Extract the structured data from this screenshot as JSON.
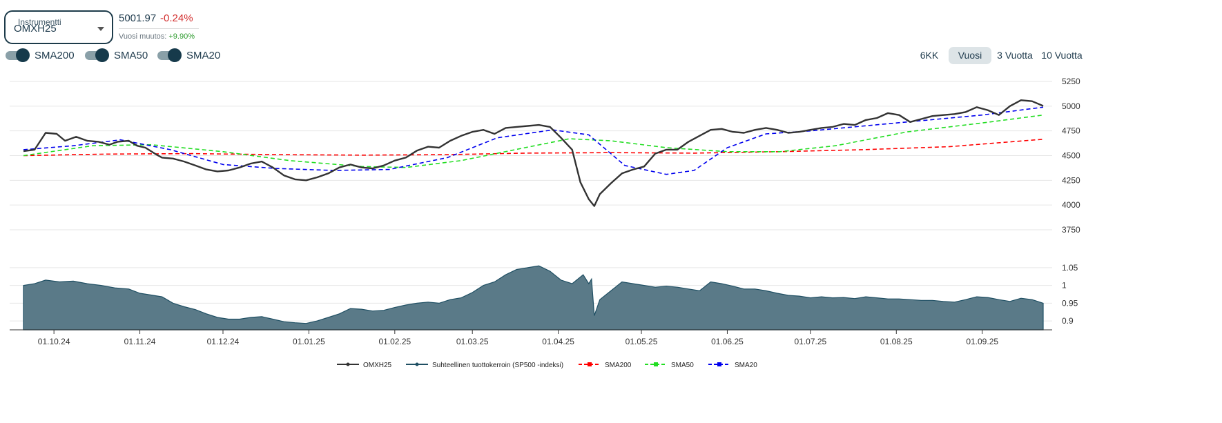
{
  "instrument": {
    "label": "Instrumentti",
    "value": "OMXH25"
  },
  "quote": {
    "price": "5001.97",
    "change": "-0.24%",
    "ytd_label": "Vuosi muutos:",
    "ytd_value": "+9.90%"
  },
  "toggles": [
    {
      "label": "SMA200",
      "on": true
    },
    {
      "label": "SMA50",
      "on": true
    },
    {
      "label": "SMA20",
      "on": true
    }
  ],
  "ranges": [
    {
      "label": "6KK",
      "active": false
    },
    {
      "label": "Vuosi",
      "active": true
    },
    {
      "label": "3 Vuotta",
      "active": false
    },
    {
      "label": "10 Vuotta",
      "active": false
    }
  ],
  "colors": {
    "price": "#333333",
    "relative": "#1f4f63",
    "relative_fill": "#5a7a88",
    "sma200": "#ff0000",
    "sma50": "#22dd22",
    "sma20": "#0000ee"
  },
  "chart_data": {
    "type": "line",
    "x_ticks": [
      "01.10.24",
      "01.11.24",
      "01.12.24",
      "01.01.25",
      "01.02.25",
      "01.03.25",
      "01.04.25",
      "01.05.25",
      "01.06.25",
      "01.07.25",
      "01.08.25",
      "01.09.25"
    ],
    "y_ticks_price": [
      "5250",
      "5000",
      "4750",
      "4500",
      "4250",
      "4000",
      "3750"
    ],
    "y_ticks_relative": [
      "1.05",
      "1",
      "0.95",
      "0.9"
    ],
    "ylim_price": [
      3750,
      5250
    ],
    "ylim_relative": [
      0.875,
      1.075
    ],
    "xlim": [
      "2024-09-20",
      "2025-09-23"
    ],
    "series": [
      {
        "name": "OMXH25",
        "points": [
          [
            "2024-09-20",
            4545
          ],
          [
            "2024-09-24",
            4560
          ],
          [
            "2024-09-28",
            4730
          ],
          [
            "2024-10-02",
            4720
          ],
          [
            "2024-10-05",
            4650
          ],
          [
            "2024-10-09",
            4690
          ],
          [
            "2024-10-13",
            4650
          ],
          [
            "2024-10-17",
            4640
          ],
          [
            "2024-10-21",
            4610
          ],
          [
            "2024-10-24",
            4640
          ],
          [
            "2024-10-28",
            4650
          ],
          [
            "2024-10-31",
            4600
          ],
          [
            "2024-11-03",
            4580
          ],
          [
            "2024-11-07",
            4510
          ],
          [
            "2024-11-09",
            4480
          ],
          [
            "2024-11-13",
            4470
          ],
          [
            "2024-11-17",
            4440
          ],
          [
            "2024-11-21",
            4400
          ],
          [
            "2024-11-25",
            4360
          ],
          [
            "2024-11-29",
            4340
          ],
          [
            "2024-12-03",
            4350
          ],
          [
            "2024-12-07",
            4380
          ],
          [
            "2024-12-11",
            4420
          ],
          [
            "2024-12-15",
            4440
          ],
          [
            "2024-12-19",
            4380
          ],
          [
            "2024-12-23",
            4300
          ],
          [
            "2024-12-27",
            4260
          ],
          [
            "2024-12-31",
            4250
          ],
          [
            "2025-01-04",
            4280
          ],
          [
            "2025-01-08",
            4320
          ],
          [
            "2025-01-12",
            4380
          ],
          [
            "2025-01-16",
            4410
          ],
          [
            "2025-01-20",
            4380
          ],
          [
            "2025-01-24",
            4370
          ],
          [
            "2025-01-28",
            4400
          ],
          [
            "2025-02-01",
            4450
          ],
          [
            "2025-02-05",
            4480
          ],
          [
            "2025-02-09",
            4550
          ],
          [
            "2025-02-13",
            4590
          ],
          [
            "2025-02-17",
            4580
          ],
          [
            "2025-02-21",
            4650
          ],
          [
            "2025-02-25",
            4700
          ],
          [
            "2025-03-01",
            4740
          ],
          [
            "2025-03-05",
            4760
          ],
          [
            "2025-03-09",
            4720
          ],
          [
            "2025-03-13",
            4780
          ],
          [
            "2025-03-17",
            4790
          ],
          [
            "2025-03-21",
            4800
          ],
          [
            "2025-03-25",
            4810
          ],
          [
            "2025-03-29",
            4790
          ],
          [
            "2025-04-02",
            4680
          ],
          [
            "2025-04-06",
            4560
          ],
          [
            "2025-04-09",
            4230
          ],
          [
            "2025-04-12",
            4060
          ],
          [
            "2025-04-14",
            3990
          ],
          [
            "2025-04-16",
            4110
          ],
          [
            "2025-04-20",
            4220
          ],
          [
            "2025-04-24",
            4320
          ],
          [
            "2025-04-28",
            4360
          ],
          [
            "2025-05-02",
            4390
          ],
          [
            "2025-05-06",
            4520
          ],
          [
            "2025-05-10",
            4560
          ],
          [
            "2025-05-14",
            4560
          ],
          [
            "2025-05-18",
            4640
          ],
          [
            "2025-05-22",
            4700
          ],
          [
            "2025-05-26",
            4760
          ],
          [
            "2025-05-30",
            4770
          ],
          [
            "2025-06-03",
            4740
          ],
          [
            "2025-06-07",
            4730
          ],
          [
            "2025-06-11",
            4760
          ],
          [
            "2025-06-15",
            4780
          ],
          [
            "2025-06-19",
            4760
          ],
          [
            "2025-06-23",
            4730
          ],
          [
            "2025-06-27",
            4740
          ],
          [
            "2025-07-01",
            4760
          ],
          [
            "2025-07-05",
            4780
          ],
          [
            "2025-07-09",
            4790
          ],
          [
            "2025-07-13",
            4820
          ],
          [
            "2025-07-17",
            4810
          ],
          [
            "2025-07-21",
            4860
          ],
          [
            "2025-07-25",
            4880
          ],
          [
            "2025-07-29",
            4930
          ],
          [
            "2025-08-02",
            4910
          ],
          [
            "2025-08-06",
            4840
          ],
          [
            "2025-08-10",
            4870
          ],
          [
            "2025-08-14",
            4900
          ],
          [
            "2025-08-18",
            4910
          ],
          [
            "2025-08-22",
            4920
          ],
          [
            "2025-08-26",
            4940
          ],
          [
            "2025-08-30",
            4990
          ],
          [
            "2025-09-03",
            4960
          ],
          [
            "2025-09-07",
            4910
          ],
          [
            "2025-09-11",
            5000
          ],
          [
            "2025-09-15",
            5060
          ],
          [
            "2025-09-19",
            5050
          ],
          [
            "2025-09-23",
            5002
          ]
        ]
      },
      {
        "name": "Suhteellinen tuottokerroin (SP500 -indeksi)",
        "points": [
          [
            "2024-09-20",
            1.0
          ],
          [
            "2024-09-24",
            1.005
          ],
          [
            "2024-09-28",
            1.015
          ],
          [
            "2024-10-03",
            1.01
          ],
          [
            "2024-10-08",
            1.012
          ],
          [
            "2024-10-13",
            1.005
          ],
          [
            "2024-10-18",
            1.0
          ],
          [
            "2024-10-23",
            0.993
          ],
          [
            "2024-10-28",
            0.99
          ],
          [
            "2024-11-01",
            0.978
          ],
          [
            "2024-11-05",
            0.973
          ],
          [
            "2024-11-09",
            0.968
          ],
          [
            "2024-11-13",
            0.95
          ],
          [
            "2024-11-17",
            0.94
          ],
          [
            "2024-11-21",
            0.932
          ],
          [
            "2024-11-25",
            0.92
          ],
          [
            "2024-11-29",
            0.91
          ],
          [
            "2024-12-03",
            0.905
          ],
          [
            "2024-12-07",
            0.905
          ],
          [
            "2024-12-11",
            0.91
          ],
          [
            "2024-12-15",
            0.912
          ],
          [
            "2024-12-19",
            0.905
          ],
          [
            "2024-12-23",
            0.898
          ],
          [
            "2024-12-27",
            0.895
          ],
          [
            "2024-12-31",
            0.893
          ],
          [
            "2025-01-04",
            0.9
          ],
          [
            "2025-01-08",
            0.91
          ],
          [
            "2025-01-12",
            0.92
          ],
          [
            "2025-01-16",
            0.935
          ],
          [
            "2025-01-20",
            0.933
          ],
          [
            "2025-01-24",
            0.928
          ],
          [
            "2025-01-28",
            0.93
          ],
          [
            "2025-02-01",
            0.938
          ],
          [
            "2025-02-05",
            0.945
          ],
          [
            "2025-02-09",
            0.95
          ],
          [
            "2025-02-13",
            0.953
          ],
          [
            "2025-02-17",
            0.95
          ],
          [
            "2025-02-21",
            0.96
          ],
          [
            "2025-02-25",
            0.965
          ],
          [
            "2025-03-01",
            0.98
          ],
          [
            "2025-03-05",
            1.0
          ],
          [
            "2025-03-09",
            1.01
          ],
          [
            "2025-03-13",
            1.03
          ],
          [
            "2025-03-17",
            1.045
          ],
          [
            "2025-03-21",
            1.05
          ],
          [
            "2025-03-25",
            1.055
          ],
          [
            "2025-03-29",
            1.04
          ],
          [
            "2025-04-02",
            1.015
          ],
          [
            "2025-04-06",
            1.005
          ],
          [
            "2025-04-10",
            1.03
          ],
          [
            "2025-04-12",
            1.005
          ],
          [
            "2025-04-13",
            1.018
          ],
          [
            "2025-04-14",
            0.915
          ],
          [
            "2025-04-16",
            0.96
          ],
          [
            "2025-04-20",
            0.985
          ],
          [
            "2025-04-24",
            1.01
          ],
          [
            "2025-04-28",
            1.005
          ],
          [
            "2025-05-02",
            1.0
          ],
          [
            "2025-05-06",
            0.995
          ],
          [
            "2025-05-10",
            0.998
          ],
          [
            "2025-05-14",
            0.995
          ],
          [
            "2025-05-18",
            0.99
          ],
          [
            "2025-05-22",
            0.985
          ],
          [
            "2025-05-26",
            1.01
          ],
          [
            "2025-05-30",
            1.005
          ],
          [
            "2025-06-03",
            0.998
          ],
          [
            "2025-06-07",
            0.99
          ],
          [
            "2025-06-11",
            0.99
          ],
          [
            "2025-06-15",
            0.985
          ],
          [
            "2025-06-19",
            0.978
          ],
          [
            "2025-06-23",
            0.972
          ],
          [
            "2025-06-27",
            0.97
          ],
          [
            "2025-07-01",
            0.965
          ],
          [
            "2025-07-05",
            0.968
          ],
          [
            "2025-07-09",
            0.965
          ],
          [
            "2025-07-13",
            0.966
          ],
          [
            "2025-07-17",
            0.963
          ],
          [
            "2025-07-21",
            0.968
          ],
          [
            "2025-07-25",
            0.965
          ],
          [
            "2025-07-29",
            0.962
          ],
          [
            "2025-08-02",
            0.962
          ],
          [
            "2025-08-06",
            0.96
          ],
          [
            "2025-08-10",
            0.958
          ],
          [
            "2025-08-14",
            0.958
          ],
          [
            "2025-08-18",
            0.955
          ],
          [
            "2025-08-22",
            0.953
          ],
          [
            "2025-08-26",
            0.96
          ],
          [
            "2025-08-30",
            0.968
          ],
          [
            "2025-09-03",
            0.966
          ],
          [
            "2025-09-07",
            0.96
          ],
          [
            "2025-09-11",
            0.955
          ],
          [
            "2025-09-15",
            0.964
          ],
          [
            "2025-09-19",
            0.96
          ],
          [
            "2025-09-23",
            0.95
          ]
        ]
      },
      {
        "name": "SMA200",
        "dashed": true,
        "points": [
          [
            "2024-09-20",
            4500
          ],
          [
            "2024-10-20",
            4515
          ],
          [
            "2024-11-20",
            4520
          ],
          [
            "2024-12-20",
            4510
          ],
          [
            "2025-01-20",
            4505
          ],
          [
            "2025-02-20",
            4510
          ],
          [
            "2025-03-20",
            4525
          ],
          [
            "2025-04-20",
            4530
          ],
          [
            "2025-05-20",
            4525
          ],
          [
            "2025-06-20",
            4540
          ],
          [
            "2025-07-20",
            4560
          ],
          [
            "2025-08-20",
            4590
          ],
          [
            "2025-09-23",
            4665
          ]
        ]
      },
      {
        "name": "SMA50",
        "dashed": true,
        "points": [
          [
            "2024-09-20",
            4500
          ],
          [
            "2024-10-15",
            4600
          ],
          [
            "2024-11-05",
            4610
          ],
          [
            "2024-12-01",
            4540
          ],
          [
            "2024-12-25",
            4450
          ],
          [
            "2025-01-20",
            4390
          ],
          [
            "2025-02-05",
            4380
          ],
          [
            "2025-02-25",
            4450
          ],
          [
            "2025-03-20",
            4580
          ],
          [
            "2025-04-05",
            4670
          ],
          [
            "2025-04-20",
            4650
          ],
          [
            "2025-05-10",
            4580
          ],
          [
            "2025-06-01",
            4540
          ],
          [
            "2025-06-20",
            4540
          ],
          [
            "2025-07-10",
            4600
          ],
          [
            "2025-08-05",
            4740
          ],
          [
            "2025-09-01",
            4830
          ],
          [
            "2025-09-23",
            4910
          ]
        ]
      },
      {
        "name": "SMA20",
        "dashed": true,
        "points": [
          [
            "2024-09-20",
            4560
          ],
          [
            "2024-10-08",
            4600
          ],
          [
            "2024-10-25",
            4660
          ],
          [
            "2024-11-12",
            4560
          ],
          [
            "2024-12-01",
            4410
          ],
          [
            "2024-12-20",
            4370
          ],
          [
            "2025-01-10",
            4350
          ],
          [
            "2025-01-30",
            4360
          ],
          [
            "2025-02-20",
            4480
          ],
          [
            "2025-03-10",
            4680
          ],
          [
            "2025-03-30",
            4760
          ],
          [
            "2025-04-12",
            4710
          ],
          [
            "2025-04-25",
            4400
          ],
          [
            "2025-05-10",
            4310
          ],
          [
            "2025-05-20",
            4350
          ],
          [
            "2025-06-01",
            4580
          ],
          [
            "2025-06-15",
            4720
          ],
          [
            "2025-07-01",
            4750
          ],
          [
            "2025-08-01",
            4830
          ],
          [
            "2025-09-01",
            4910
          ],
          [
            "2025-09-23",
            4990
          ]
        ]
      }
    ],
    "legend": [
      {
        "label": "OMXH25",
        "style": "price"
      },
      {
        "label": "Suhteellinen tuottokerroin (SP500 -indeksi)",
        "style": "relative"
      },
      {
        "label": "SMA200",
        "style": "sma200"
      },
      {
        "label": "SMA50",
        "style": "sma50"
      },
      {
        "label": "SMA20",
        "style": "sma20"
      }
    ],
    "legend_position": "bottom-center",
    "grid": true
  }
}
